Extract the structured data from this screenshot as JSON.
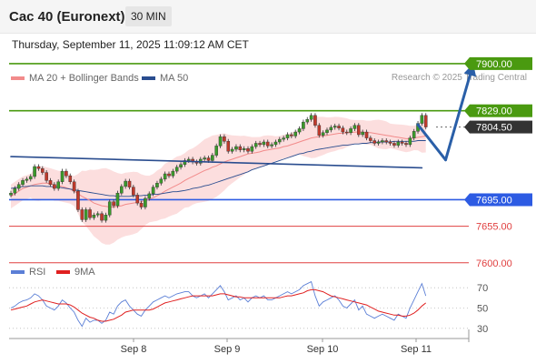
{
  "header": {
    "title": "Cac 40 (Euronext)",
    "timeframe": "30 MIN"
  },
  "datetime": "Thursday, September 11, 2025 11:09:12 AM CET",
  "legend": {
    "ma20": {
      "label": "MA 20 + Bollinger Bands",
      "color": "#f28b8b"
    },
    "ma50": {
      "label": "MA 50",
      "color": "#2a4d8f"
    }
  },
  "credit": "Research © 2025 Trading Central",
  "rsi_legend": {
    "rsi": {
      "label": "RSI",
      "color": "#5b7fd6"
    },
    "ma9": {
      "label": "9MA",
      "color": "#e02020"
    }
  },
  "chart_data": {
    "type": "candlestick",
    "x_labels": [
      "Sep 8",
      "Sep 9",
      "Sep 10",
      "Sep 11"
    ],
    "price_levels": [
      {
        "value": 7900.0,
        "label": "7900.00",
        "kind": "resistance",
        "color": "#4a9a10"
      },
      {
        "value": 7829.0,
        "label": "7829.00",
        "kind": "pivot",
        "color": "#4a9a10"
      },
      {
        "value": 7804.5,
        "label": "7804.50",
        "kind": "last",
        "color": "#333333"
      },
      {
        "value": 7695.0,
        "label": "7695.00",
        "kind": "support",
        "color": "#2d5be3"
      },
      {
        "value": 7655.0,
        "label": "7655.00",
        "kind": "support",
        "color": "#e04040"
      },
      {
        "value": 7600.0,
        "label": "7600.00",
        "kind": "support",
        "color": "#e04040"
      }
    ],
    "ylim": [
      7560,
      7930
    ],
    "close": [
      7705,
      7712,
      7718,
      7724,
      7726,
      7730,
      7745,
      7742,
      7736,
      7724,
      7718,
      7712,
      7722,
      7738,
      7731,
      7722,
      7708,
      7680,
      7665,
      7680,
      7668,
      7672,
      7674,
      7664,
      7672,
      7692,
      7686,
      7705,
      7715,
      7723,
      7714,
      7702,
      7690,
      7684,
      7697,
      7704,
      7714,
      7720,
      7726,
      7734,
      7731,
      7738,
      7744,
      7748,
      7754,
      7756,
      7752,
      7750,
      7756,
      7758,
      7754,
      7762,
      7776,
      7790,
      7783,
      7768,
      7771,
      7775,
      7770,
      7772,
      7768,
      7775,
      7780,
      7778,
      7782,
      7776,
      7778,
      7782,
      7786,
      7788,
      7793,
      7791,
      7797,
      7802,
      7812,
      7816,
      7822,
      7807,
      7792,
      7796,
      7800,
      7804,
      7806,
      7803,
      7797,
      7796,
      7802,
      7807,
      7793,
      7797,
      7788,
      7784,
      7780,
      7782,
      7784,
      7782,
      7780,
      7777,
      7782,
      7780,
      7778,
      7788,
      7798,
      7810,
      7822,
      7804.5
    ],
    "ma20": [
      7700,
      7704,
      7708,
      7712,
      7714,
      7716,
      7718,
      7719,
      7720,
      7720,
      7719,
      7717,
      7716,
      7715,
      7713,
      7711,
      7708,
      7704,
      7700,
      7697,
      7694,
      7690,
      7688,
      7686,
      7685,
      7684,
      7684,
      7685,
      7686,
      7688,
      7689,
      7690,
      7691,
      7692,
      7694,
      7696,
      7698,
      7701,
      7704,
      7708,
      7711,
      7714,
      7717,
      7720,
      7724,
      7727,
      7730,
      7733,
      7736,
      7739,
      7741,
      7744,
      7746,
      7749,
      7752,
      7754,
      7756,
      7758,
      7760,
      7762,
      7764,
      7765,
      7766,
      7767,
      7769,
      7770,
      7771,
      7772,
      7773,
      7775,
      7776,
      7778,
      7780,
      7782,
      7784,
      7786,
      7788,
      7789,
      7790,
      7791,
      7792,
      7793,
      7794,
      7795,
      7795,
      7796,
      7796,
      7797,
      7797,
      7797,
      7796,
      7796,
      7795,
      7794,
      7793,
      7792,
      7791,
      7790,
      7789,
      7788,
      7787,
      7787,
      7788,
      7789,
      7790,
      7791
    ],
    "ma50": [
      7712,
      7713,
      7714,
      7715,
      7715,
      7716,
      7716,
      7716,
      7716,
      7715,
      7715,
      7714,
      7714,
      7713,
      7712,
      7711,
      7710,
      7709,
      7708,
      7707,
      7706,
      7705,
      7704,
      7703,
      7702,
      7701,
      7701,
      7700,
      7700,
      7700,
      7700,
      7701,
      7701,
      7701,
      7702,
      7702,
      7703,
      7703,
      7704,
      7705,
      7706,
      7707,
      7707,
      7708,
      7709,
      7710,
      7712,
      7713,
      7714,
      7716,
      7717,
      7719,
      7721,
      7723,
      7725,
      7727,
      7729,
      7731,
      7733,
      7735,
      7737,
      7740,
      7742,
      7744,
      7746,
      7748,
      7750,
      7752,
      7754,
      7756,
      7758,
      7760,
      7762,
      7764,
      7765,
      7767,
      7768,
      7770,
      7771,
      7772,
      7773,
      7774,
      7775,
      7776,
      7777,
      7777,
      7778,
      7779,
      7779,
      7780,
      7780,
      7781,
      7781,
      7782,
      7782,
      7782,
      7782,
      7783,
      7783,
      7783,
      7783,
      7783,
      7783,
      7784,
      7784,
      7784
    ],
    "trendlines": [
      {
        "from": [
          0,
          7760
        ],
        "to": [
          104,
          7743
        ],
        "color": "#2a4d8f"
      },
      {
        "from": [
          103,
          7808
        ],
        "to": [
          110,
          7755
        ],
        "color": "#2a5fa8",
        "arrow": false
      },
      {
        "from": [
          110,
          7755
        ],
        "to": [
          117,
          7900
        ],
        "color": "#2a5fa8",
        "arrow": true
      }
    ],
    "rsi": {
      "ylim": [
        20,
        80
      ],
      "ticks": [
        70,
        50,
        30
      ],
      "rsi": [
        50,
        52,
        55,
        57,
        58,
        60,
        64,
        62,
        58,
        52,
        50,
        48,
        52,
        58,
        55,
        50,
        46,
        38,
        32,
        40,
        36,
        38,
        38,
        35,
        38,
        46,
        44,
        52,
        56,
        58,
        52,
        48,
        44,
        42,
        48,
        52,
        56,
        58,
        60,
        62,
        60,
        62,
        64,
        65,
        66,
        66,
        62,
        60,
        62,
        64,
        60,
        64,
        68,
        72,
        66,
        58,
        60,
        62,
        58,
        60,
        56,
        60,
        62,
        60,
        62,
        58,
        58,
        60,
        62,
        64,
        66,
        64,
        66,
        68,
        72,
        74,
        76,
        62,
        52,
        56,
        58,
        60,
        62,
        58,
        52,
        50,
        54,
        58,
        48,
        52,
        44,
        42,
        40,
        42,
        44,
        42,
        40,
        38,
        44,
        42,
        40,
        50,
        58,
        66,
        74,
        62
      ],
      "ma9": [
        48,
        49,
        50,
        51,
        52,
        54,
        56,
        57,
        58,
        57,
        56,
        55,
        54,
        54,
        54,
        53,
        51,
        48,
        45,
        43,
        41,
        40,
        38,
        37,
        37,
        38,
        39,
        41,
        43,
        46,
        47,
        48,
        48,
        48,
        48,
        48,
        49,
        51,
        53,
        55,
        56,
        57,
        58,
        59,
        60,
        61,
        62,
        62,
        62,
        62,
        62,
        62,
        63,
        64,
        64,
        63,
        62,
        61,
        61,
        60,
        60,
        60,
        60,
        60,
        60,
        60,
        60,
        60,
        60,
        61,
        62,
        62,
        63,
        64,
        65,
        67,
        68,
        68,
        67,
        66,
        64,
        62,
        61,
        60,
        59,
        58,
        57,
        56,
        55,
        54,
        53,
        51,
        49,
        47,
        46,
        45,
        44,
        43,
        43,
        42,
        42,
        43,
        45,
        48,
        52,
        55
      ]
    }
  }
}
